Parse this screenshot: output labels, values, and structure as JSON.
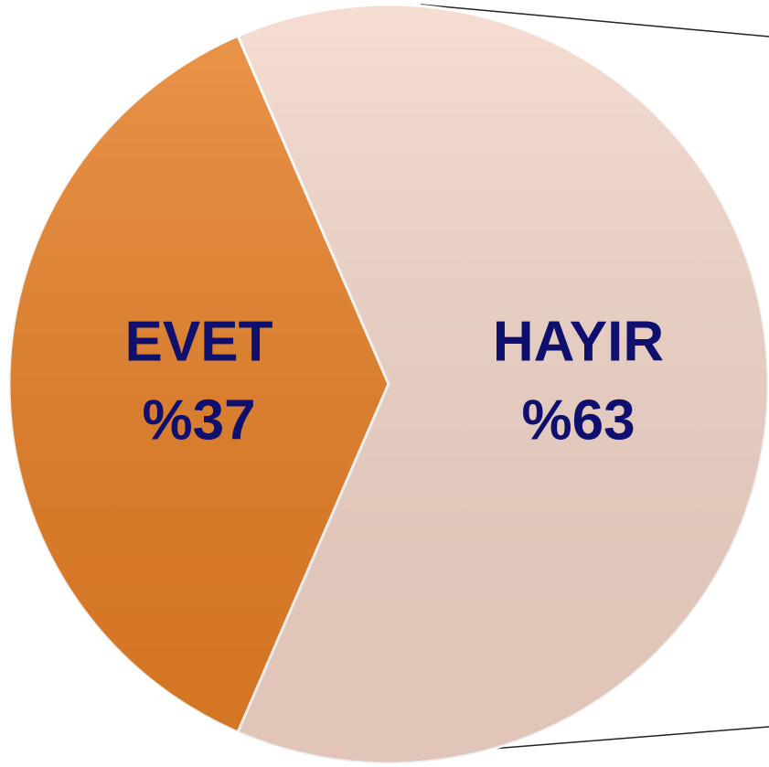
{
  "chart_data": {
    "type": "pie",
    "categories": [
      "EVET",
      "HAYIR"
    ],
    "values": [
      37,
      63
    ],
    "value_labels": [
      "%37",
      "%63"
    ],
    "colors": [
      "#e77f25",
      "#f3d6c8"
    ],
    "label_color": "#0f0f6e"
  }
}
